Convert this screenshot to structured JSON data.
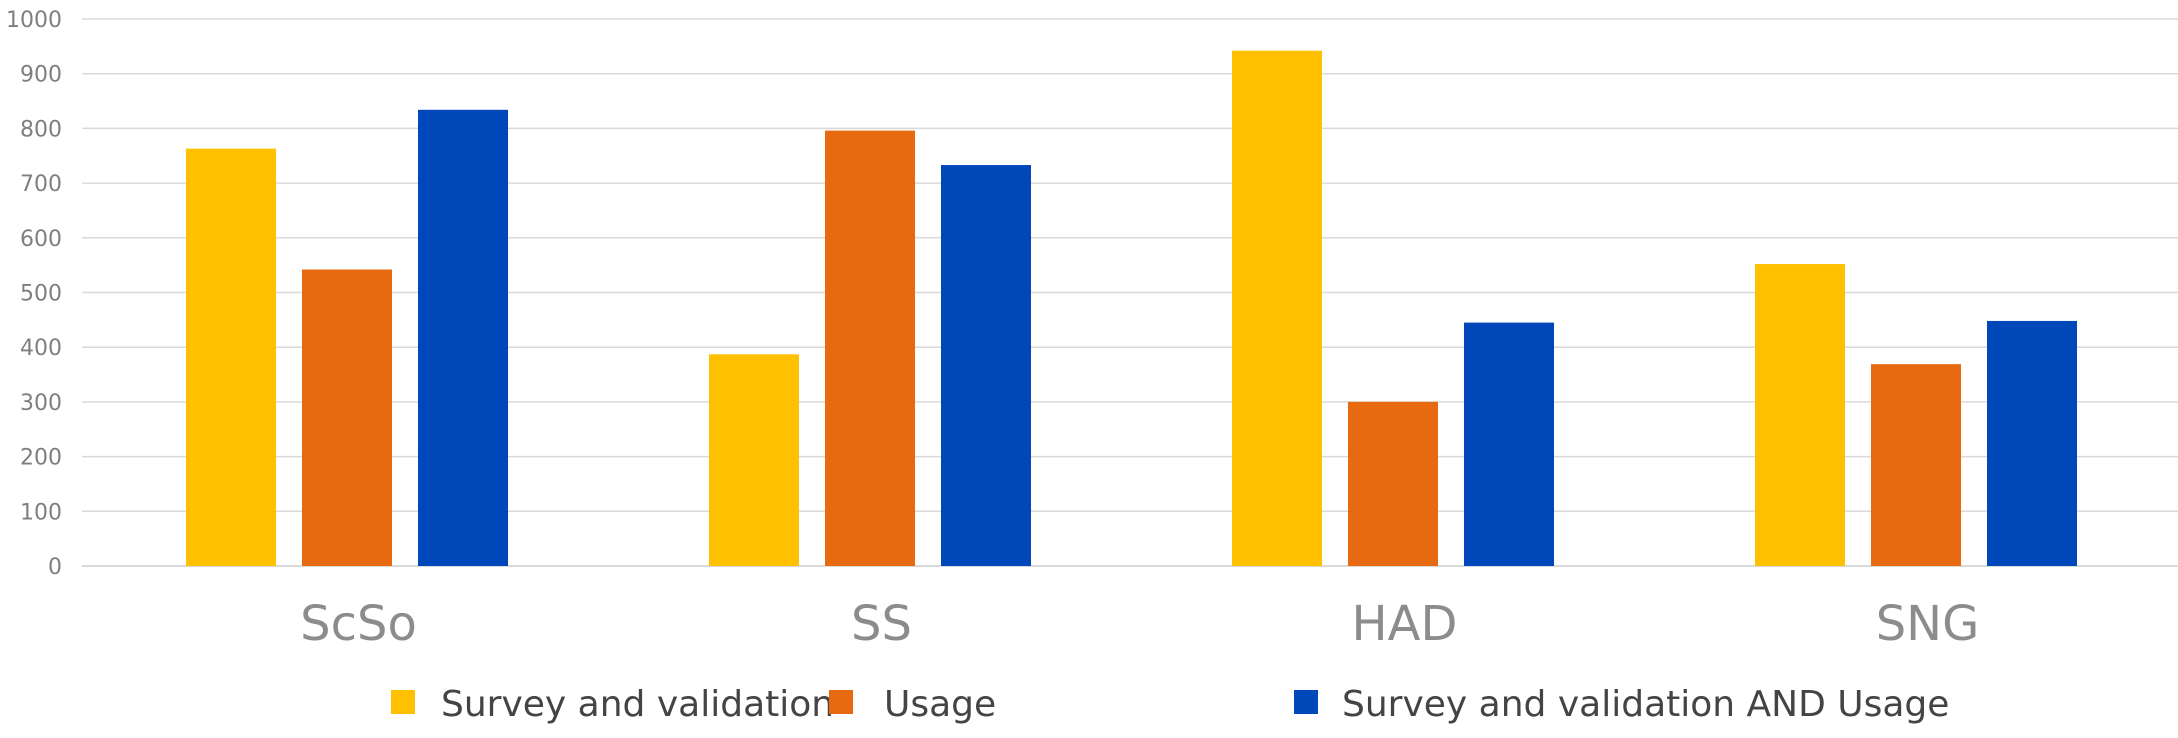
{
  "chart_data": {
    "type": "bar",
    "categories": [
      "ScSo",
      "SS",
      "HAD",
      "SNG"
    ],
    "series": [
      {
        "name": "Survey and validation",
        "color": "#FFC000",
        "values": [
          763,
          387,
          942,
          552
        ]
      },
      {
        "name": "Usage",
        "color": "#E86A10",
        "values": [
          542,
          796,
          300,
          369
        ]
      },
      {
        "name": "Survey and validation AND Usage",
        "color": "#0047BA",
        "values": [
          834,
          733,
          445,
          448
        ]
      }
    ],
    "ylim": [
      0,
      1000
    ],
    "yticks": [
      0,
      100,
      200,
      300,
      400,
      500,
      600,
      700,
      800,
      900,
      1000
    ],
    "grid": true,
    "legend_position": "bottom",
    "gridline_color": "#d9d9d9",
    "axis_color": "#d9d9d9"
  }
}
